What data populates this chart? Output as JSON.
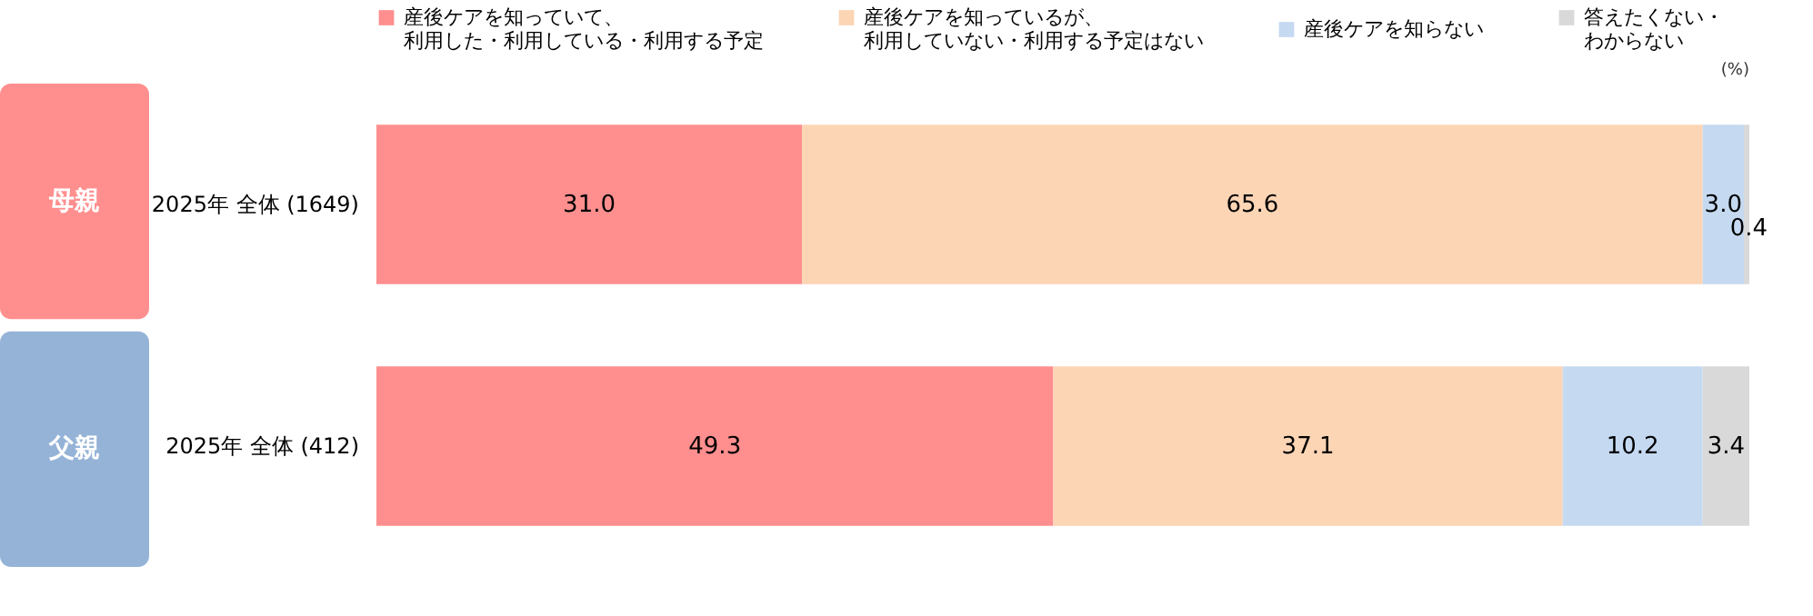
{
  "chart_data": {
    "type": "bar",
    "orientation": "horizontal",
    "stacked": true,
    "legend": "top",
    "categories": [
      "2025年 全体 (1649)",
      "2025年 全体 (412)"
    ],
    "series": [
      {
        "name": "産後ケアを知っていて、利用した・利用している・利用する予定",
        "color": "#ff8f8f",
        "values": [
          31.0,
          49.3
        ],
        "value_labels": [
          "31.0",
          "49.3"
        ]
      },
      {
        "name": "産後ケアを知っているが、利用していない・利用する予定はない",
        "color": "#fcd5b5",
        "values": [
          65.6,
          37.1
        ],
        "value_labels": [
          "65.6",
          "37.1"
        ]
      },
      {
        "name": "産後ケアを知らない",
        "color": "#c5d9f1",
        "values": [
          3.0,
          10.2
        ],
        "value_labels": [
          "3.0",
          "10.2"
        ]
      },
      {
        "name": "答えたくない・わからない",
        "color": "#d9d9d9",
        "values": [
          0.4,
          3.4
        ],
        "value_labels": [
          "0.4",
          "3.4"
        ]
      }
    ],
    "annotations": [
      "(%)",
      "母親",
      "父親"
    ]
  }
}
